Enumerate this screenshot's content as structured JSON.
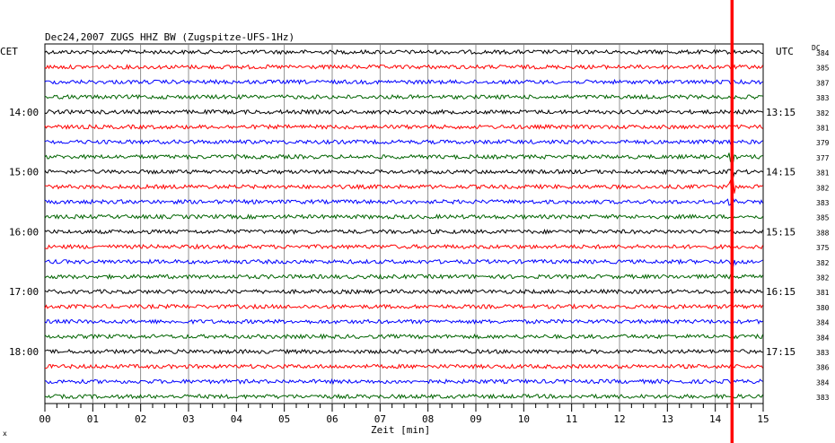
{
  "chart_data": {
    "type": "line",
    "title": "Dec24,2007  ZUGS HHZ BW (Zugspitze-UFS-1Hz)",
    "left_label": "CET",
    "right_label": "UTC",
    "dc_label": "DC",
    "xlabel": "Zeit [min]",
    "xlim": [
      0,
      15
    ],
    "x_ticks": [
      "00",
      "01",
      "02",
      "03",
      "04",
      "05",
      "06",
      "07",
      "08",
      "09",
      "10",
      "11",
      "12",
      "13",
      "14",
      "15"
    ],
    "trace_count": 24,
    "trace_colors": [
      "#000000",
      "#ff0000",
      "#0000ff",
      "#006400"
    ],
    "cet_hours": [
      {
        "trace": 4,
        "label": "14:00"
      },
      {
        "trace": 8,
        "label": "15:00"
      },
      {
        "trace": 12,
        "label": "16:00"
      },
      {
        "trace": 16,
        "label": "17:00"
      },
      {
        "trace": 20,
        "label": "18:00"
      }
    ],
    "utc_hours": [
      {
        "trace": 4,
        "label": "13:15"
      },
      {
        "trace": 8,
        "label": "14:15"
      },
      {
        "trace": 12,
        "label": "15:15"
      },
      {
        "trace": 16,
        "label": "16:15"
      },
      {
        "trace": 20,
        "label": "17:15"
      }
    ],
    "dc_values": [
      "384",
      "385",
      "387",
      "383",
      "382",
      "381",
      "379",
      "377",
      "381",
      "382",
      "383",
      "385",
      "388",
      "375",
      "382",
      "382",
      "381",
      "380",
      "384",
      "384",
      "383",
      "386",
      "384",
      "383"
    ],
    "event_marker": {
      "x_min": 14.35,
      "color": "#ff0000"
    },
    "event_bursts": [
      {
        "trace": 7,
        "x_min": 14.35
      },
      {
        "trace": 8,
        "x_min": 14.35
      },
      {
        "trace": 9,
        "x_min": 14.35
      },
      {
        "trace": 10,
        "x_min": 14.35
      },
      {
        "trace": 14,
        "x_min": 14.35
      }
    ],
    "corner_mark": "x"
  }
}
